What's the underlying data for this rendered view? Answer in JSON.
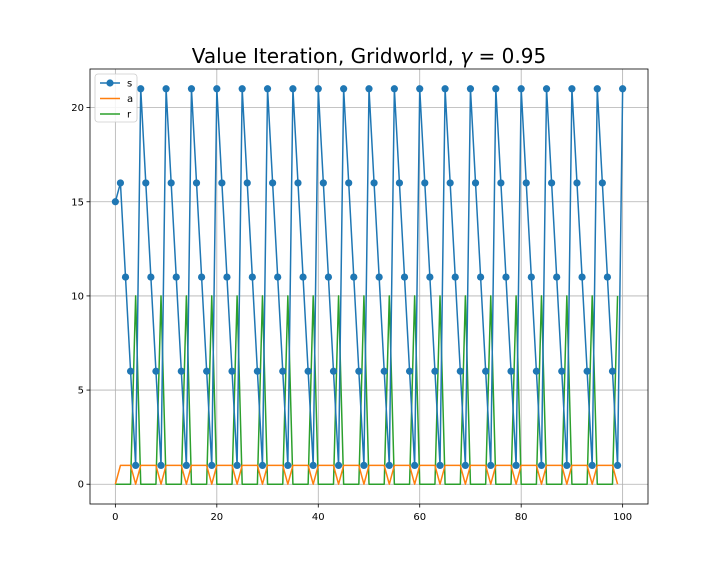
{
  "chart_data": {
    "type": "line",
    "title": "Value Iteration, Gridworld, γ = 0.95",
    "title_parts": {
      "prefix": "Value Iteration, Gridworld, ",
      "symbol": "γ",
      "suffix": " = 0.95"
    },
    "xlabel": "",
    "ylabel": "",
    "xlim": [
      -5,
      105
    ],
    "ylim": [
      -1.05,
      22.05
    ],
    "xticks": [
      0,
      20,
      40,
      60,
      80,
      100
    ],
    "yticks": [
      0,
      5,
      10,
      15,
      20
    ],
    "grid": true,
    "legend_position": "top-left",
    "x": [
      0,
      1,
      2,
      3,
      4,
      5,
      6,
      7,
      8,
      9,
      10,
      11,
      12,
      13,
      14,
      15,
      16,
      17,
      18,
      19,
      20,
      21,
      22,
      23,
      24,
      25,
      26,
      27,
      28,
      29,
      30,
      31,
      32,
      33,
      34,
      35,
      36,
      37,
      38,
      39,
      40,
      41,
      42,
      43,
      44,
      45,
      46,
      47,
      48,
      49,
      50,
      51,
      52,
      53,
      54,
      55,
      56,
      57,
      58,
      59,
      60,
      61,
      62,
      63,
      64,
      65,
      66,
      67,
      68,
      69,
      70,
      71,
      72,
      73,
      74,
      75,
      76,
      77,
      78,
      79,
      80,
      81,
      82,
      83,
      84,
      85,
      86,
      87,
      88,
      89,
      90,
      91,
      92,
      93,
      94,
      95,
      96,
      97,
      98,
      99,
      100
    ],
    "series": [
      {
        "name": "s",
        "color": "#1f77b4",
        "marker": "circle",
        "values": [
          15,
          16,
          11,
          6,
          1,
          21,
          16,
          11,
          6,
          1,
          21,
          16,
          11,
          6,
          1,
          21,
          16,
          11,
          6,
          1,
          21,
          16,
          11,
          6,
          1,
          21,
          16,
          11,
          6,
          1,
          21,
          16,
          11,
          6,
          1,
          21,
          16,
          11,
          6,
          1,
          21,
          16,
          11,
          6,
          1,
          21,
          16,
          11,
          6,
          1,
          21,
          16,
          11,
          6,
          1,
          21,
          16,
          11,
          6,
          1,
          21,
          16,
          11,
          6,
          1,
          21,
          16,
          11,
          6,
          1,
          21,
          16,
          11,
          6,
          1,
          21,
          16,
          11,
          6,
          1,
          21,
          16,
          11,
          6,
          1,
          21,
          16,
          11,
          6,
          1,
          21,
          16,
          11,
          6,
          1,
          21,
          16,
          11,
          6,
          1,
          21
        ]
      },
      {
        "name": "a",
        "color": "#ff7f0e",
        "marker": "none",
        "values": [
          0,
          1,
          1,
          1,
          0,
          1,
          1,
          1,
          1,
          0,
          1,
          1,
          1,
          1,
          0,
          1,
          1,
          1,
          1,
          0,
          1,
          1,
          1,
          1,
          0,
          1,
          1,
          1,
          1,
          0,
          1,
          1,
          1,
          1,
          0,
          1,
          1,
          1,
          1,
          0,
          1,
          1,
          1,
          1,
          0,
          1,
          1,
          1,
          1,
          0,
          1,
          1,
          1,
          1,
          0,
          1,
          1,
          1,
          1,
          0,
          1,
          1,
          1,
          1,
          0,
          1,
          1,
          1,
          1,
          0,
          1,
          1,
          1,
          1,
          0,
          1,
          1,
          1,
          1,
          0,
          1,
          1,
          1,
          1,
          0,
          1,
          1,
          1,
          1,
          0,
          1,
          1,
          1,
          1,
          0,
          1,
          1,
          1,
          1,
          0,
          null
        ]
      },
      {
        "name": "r",
        "color": "#2ca02c",
        "marker": "none",
        "values": [
          0,
          0,
          0,
          0,
          10,
          0,
          0,
          0,
          0,
          10,
          0,
          0,
          0,
          0,
          10,
          0,
          0,
          0,
          0,
          10,
          0,
          0,
          0,
          0,
          10,
          0,
          0,
          0,
          0,
          10,
          0,
          0,
          0,
          0,
          10,
          0,
          0,
          0,
          0,
          10,
          0,
          0,
          0,
          0,
          10,
          0,
          0,
          0,
          0,
          10,
          0,
          0,
          0,
          0,
          10,
          0,
          0,
          0,
          0,
          10,
          0,
          0,
          0,
          0,
          10,
          0,
          0,
          0,
          0,
          10,
          0,
          0,
          0,
          0,
          10,
          0,
          0,
          0,
          0,
          10,
          0,
          0,
          0,
          0,
          10,
          0,
          0,
          0,
          0,
          10,
          0,
          0,
          0,
          0,
          10,
          0,
          0,
          0,
          0,
          10,
          null
        ]
      }
    ]
  }
}
